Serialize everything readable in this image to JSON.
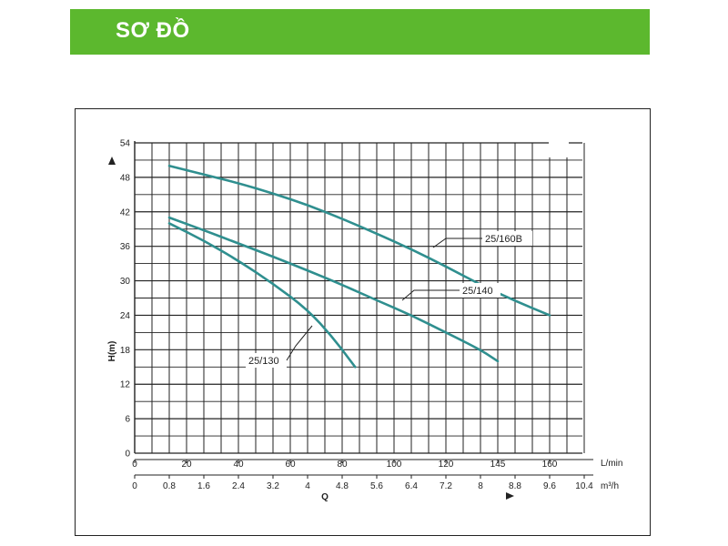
{
  "header": {
    "title": "SƠ ĐỒ"
  },
  "chart_data": {
    "type": "line",
    "ylabel": "H(m)",
    "xlabel": "Q",
    "ylim": [
      0,
      54
    ],
    "yticks": [
      "54",
      "48",
      "42",
      "36",
      "30",
      "24",
      "18",
      "12",
      "6",
      "0"
    ],
    "x_lmin_unit": "L/min",
    "x_lmin_ticks": [
      "0",
      "20",
      "40",
      "60",
      "80",
      "100",
      "120",
      "145",
      "160"
    ],
    "x_m3h_unit": "m³/h",
    "x_m3h_ticks": [
      "0",
      "0.8",
      "1.6",
      "2.4",
      "3.2",
      "4",
      "4.8",
      "5.6",
      "6.4",
      "7.2",
      "8",
      "8.8",
      "9.6",
      "10.4"
    ],
    "series": [
      {
        "name": "25/160B",
        "x_m3h": [
          0.8,
          1.6,
          2.4,
          3.2,
          4.0,
          4.8,
          5.6,
          6.4,
          7.2,
          8.0,
          8.8,
          9.6
        ],
        "y": [
          50,
          48.5,
          47,
          45.2,
          43.2,
          40.8,
          38.2,
          35.5,
          32.5,
          29.3,
          26.5,
          24
        ]
      },
      {
        "name": "25/140",
        "x_m3h": [
          0.8,
          1.6,
          2.4,
          3.2,
          4.0,
          4.8,
          5.6,
          6.4,
          7.2,
          8.0,
          8.4
        ],
        "y": [
          41,
          38.8,
          36.5,
          34.2,
          31.8,
          29.3,
          26.6,
          24,
          21,
          18,
          16
        ]
      },
      {
        "name": "25/130",
        "x_m3h": [
          0.8,
          1.6,
          2.4,
          3.2,
          4.0,
          4.6,
          5.1
        ],
        "y": [
          40,
          37,
          33.5,
          29.5,
          25,
          20,
          15
        ]
      }
    ]
  }
}
